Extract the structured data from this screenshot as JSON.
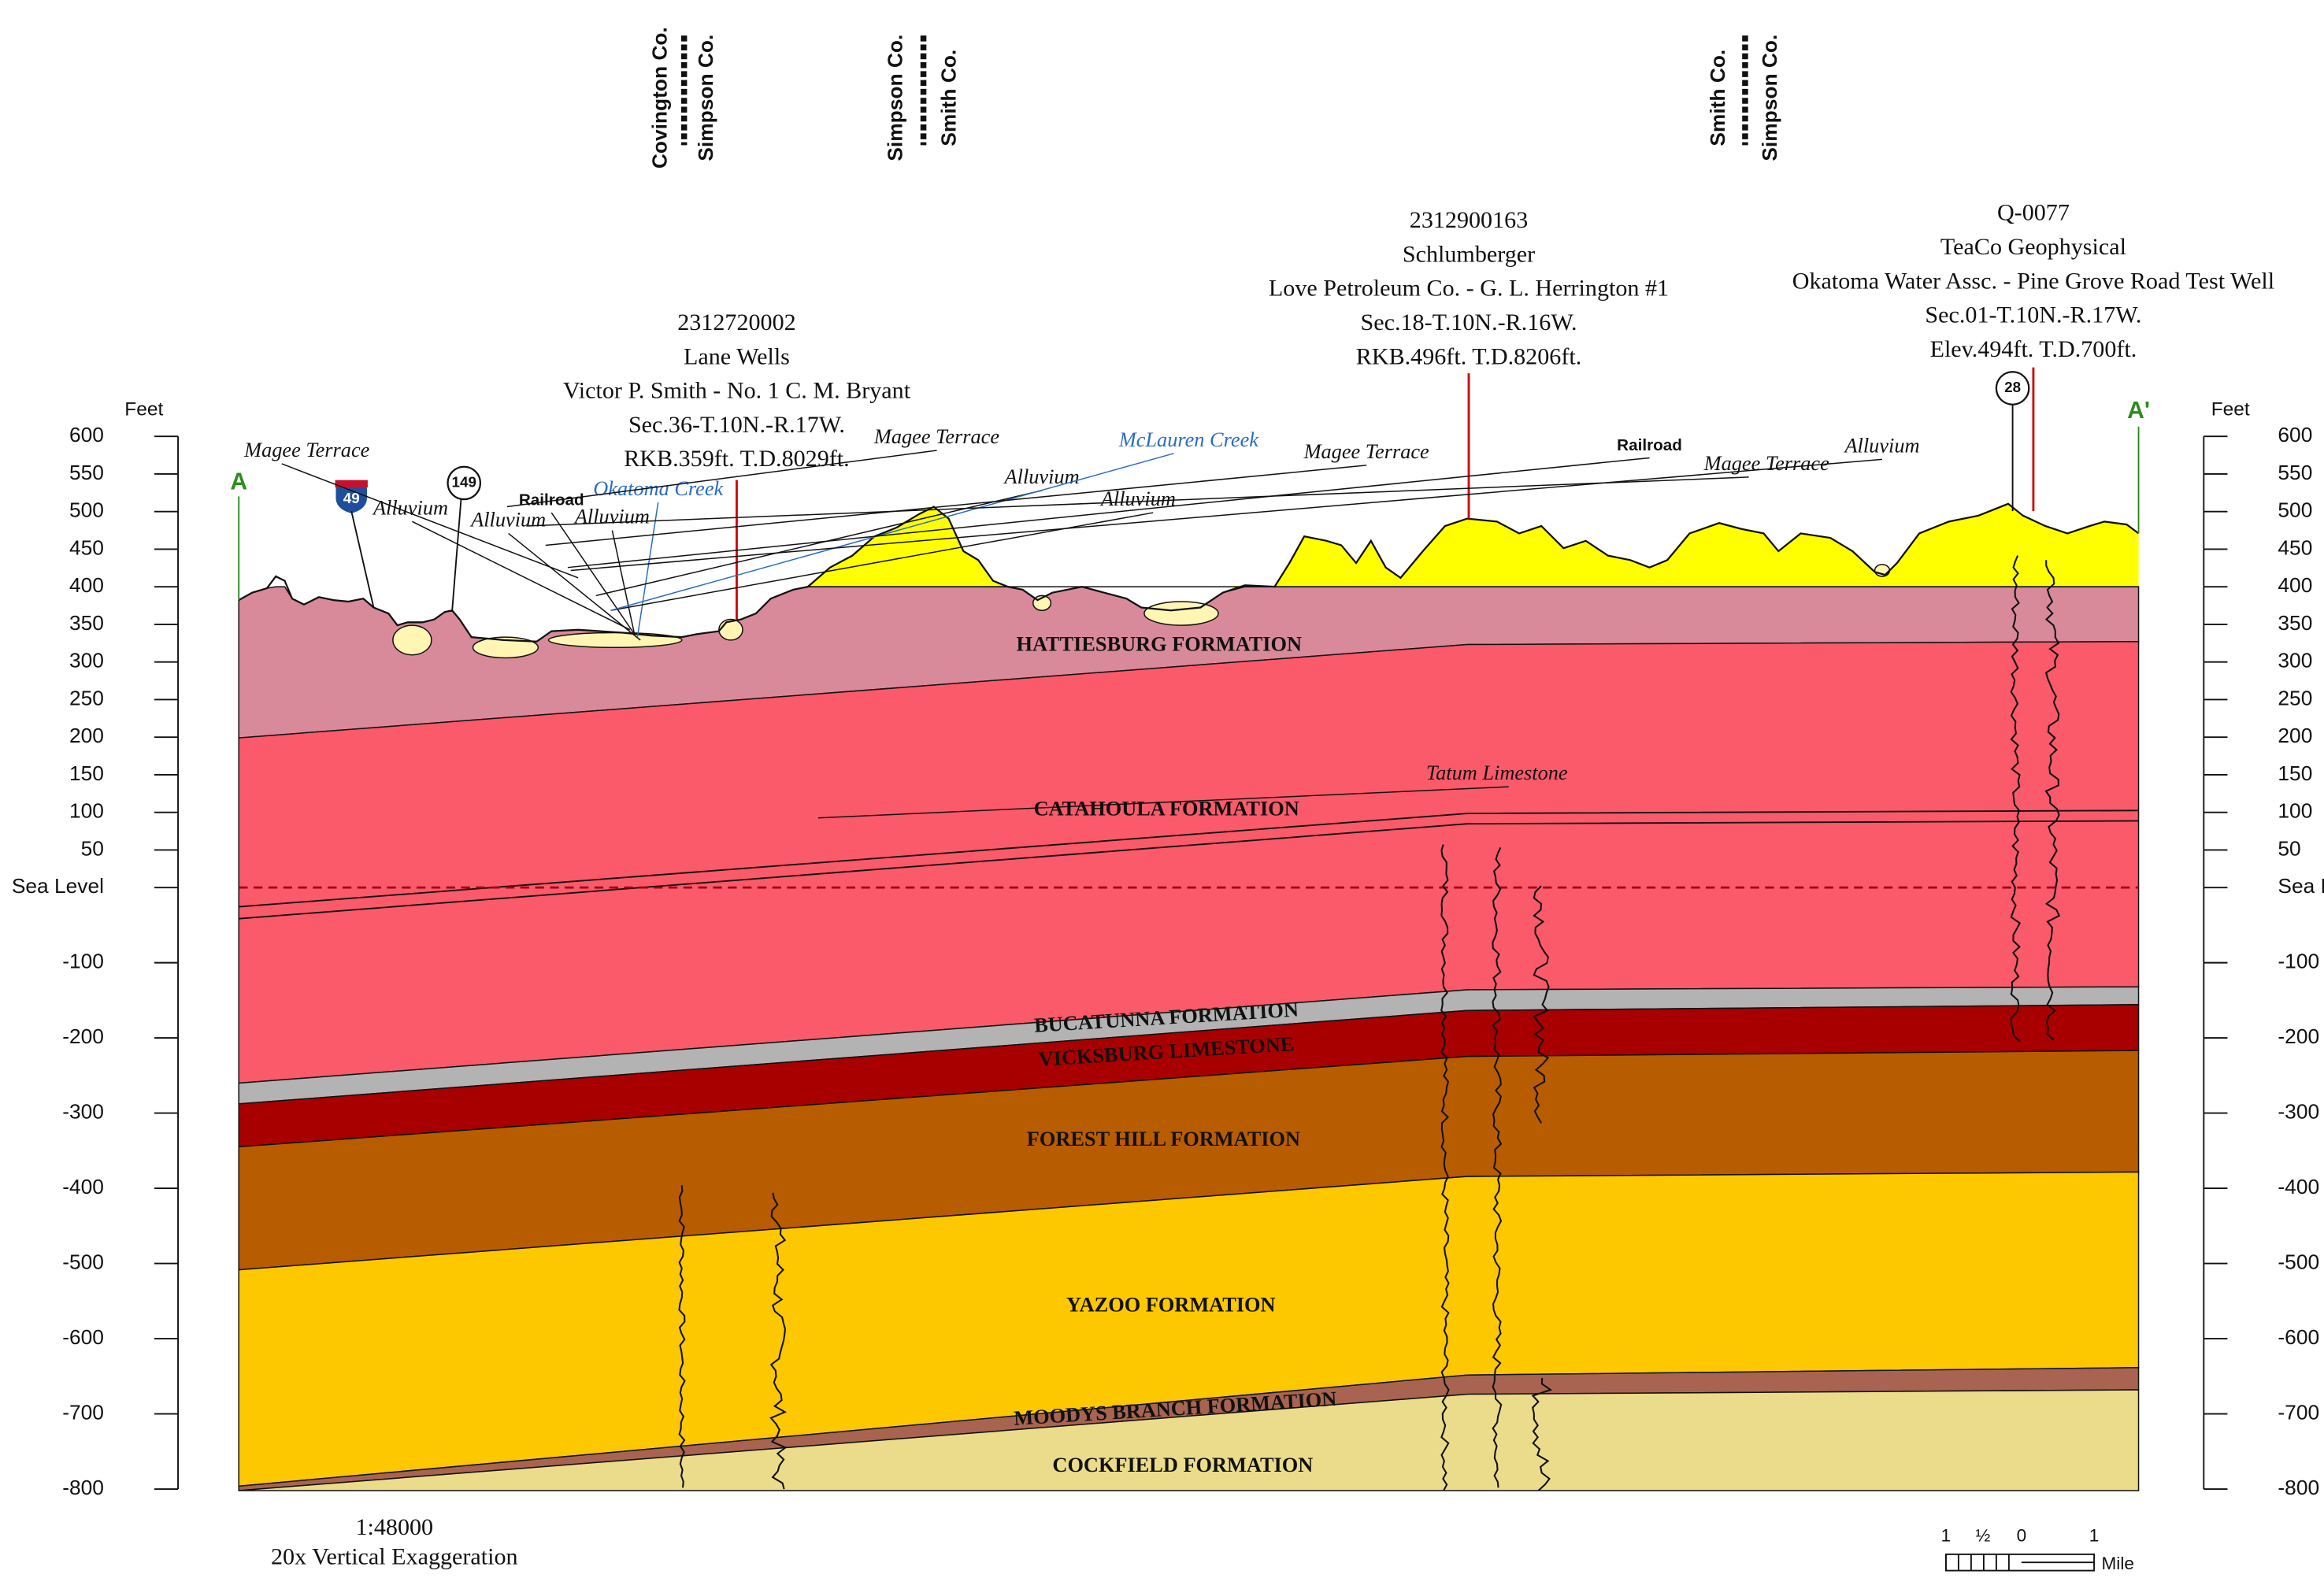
{
  "county_lines": [
    [
      "Covington Co.",
      "Simpson Co."
    ],
    [
      "Simpson Co.",
      "Smith Co."
    ],
    [
      "Smith Co.",
      "Simpson Co."
    ]
  ],
  "wells": [
    {
      "lines": [
        "2312720002",
        "Lane Wells",
        "Victor P. Smith - No. 1 C. M. Bryant",
        "Sec.36-T.10N.-R.17W.",
        "RKB.359ft. T.D.8029ft."
      ]
    },
    {
      "lines": [
        "2312900163",
        "Schlumberger",
        "Love Petroleum Co. - G. L. Herrington #1",
        "Sec.18-T.10N.-R.16W.",
        "RKB.496ft. T.D.8206ft."
      ]
    },
    {
      "lines": [
        "Q-0077",
        "TeaCo Geophysical",
        "Okatoma Water Assc. - Pine Grove Road Test Well",
        "Sec.01-T.10N.-R.17W.",
        "Elev.494ft. T.D.700ft."
      ]
    }
  ],
  "section_ends": [
    "A",
    "A'"
  ],
  "axis": {
    "unit": "Feet",
    "ticks": [
      600,
      550,
      500,
      450,
      400,
      350,
      300,
      250,
      200,
      150,
      100,
      50,
      {
        "value": 0,
        "label": "Sea Level"
      },
      -100,
      -200,
      -300,
      -400,
      -500,
      -600,
      -700,
      -800
    ]
  },
  "routes": [
    "49",
    "149",
    "28"
  ],
  "surface_labels": [
    "Magee Terrace",
    "Alluvium",
    "Alluvium",
    "Railroad",
    "Alluvium",
    "Okatoma Creek",
    "Magee Terrace",
    "Alluvium",
    "Alluvium",
    "McLauren Creek",
    "Magee Terrace",
    "Railroad",
    "Magee Terrace",
    "Alluvium",
    "Tatum Limestone"
  ],
  "formations": [
    "HATTIESBURG FORMATION",
    "CATAHOULA FORMATION",
    "BUCATUNNA FORMATION",
    "VICKSBURG LIMESTONE",
    "FOREST HILL FORMATION",
    "YAZOO FORMATION",
    "MOODYS BRANCH FORMATION",
    "COCKFIELD FORMATION"
  ],
  "scale": {
    "ratio": "1:48000",
    "exaggeration": "20x Vertical Exaggeration",
    "bar_labels": [
      "1",
      "½",
      "0",
      "1"
    ],
    "unit": "Mile"
  }
}
